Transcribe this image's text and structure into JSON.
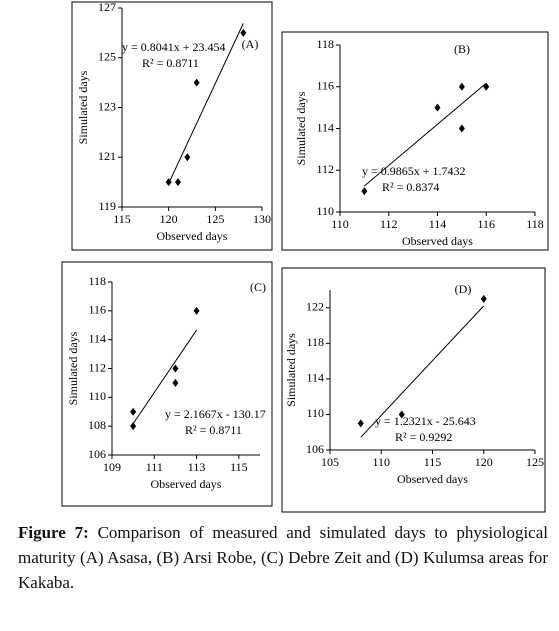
{
  "chart_data": [
    {
      "type": "scatter",
      "label": "(A)",
      "x_label": "Observed days",
      "y_label": "Simulated days",
      "x": [
        120,
        121,
        122,
        123,
        128
      ],
      "values": [
        120,
        120,
        121,
        124,
        126
      ],
      "color": "#000000",
      "trendline": true,
      "annotations": [
        "y = 0.8041x + 23.454",
        "R² = 0.8711"
      ],
      "xlim": [
        115,
        130
      ],
      "xticks": [
        115,
        120,
        125,
        130
      ],
      "ylim": [
        119,
        127
      ],
      "yticks": [
        119,
        121,
        123,
        125,
        127
      ],
      "grid": false
    },
    {
      "type": "scatter",
      "label": "(B)",
      "x_label": "Observed days",
      "y_label": "Simulated days",
      "x": [
        111,
        114,
        115,
        115,
        116
      ],
      "values": [
        111,
        115,
        116,
        114,
        116
      ],
      "color": "#000000",
      "trendline": true,
      "annotations": [
        "y = 0.9865x + 1.7432",
        "R² = 0.8374"
      ],
      "xlim": [
        110,
        118
      ],
      "xticks": [
        110,
        112,
        114,
        116,
        118
      ],
      "ylim": [
        110,
        118
      ],
      "yticks": [
        110,
        112,
        114,
        116,
        118
      ],
      "grid": false
    },
    {
      "type": "scatter",
      "label": "(C)",
      "x_label": "Observed days",
      "y_label": "Simulated days",
      "x": [
        110,
        110,
        112,
        112,
        113
      ],
      "values": [
        109,
        108,
        112,
        111,
        116
      ],
      "color": "#000000",
      "trendline": true,
      "annotations": [
        "y = 2.1667x - 130.17",
        "R² = 0.8711"
      ],
      "xlim": [
        109,
        116
      ],
      "xticks": [
        109,
        111,
        113,
        115
      ],
      "ylim": [
        106,
        118
      ],
      "yticks": [
        106,
        108,
        110,
        112,
        114,
        116,
        118
      ],
      "grid": false
    },
    {
      "type": "scatter",
      "label": "(D)",
      "x_label": "Observed days",
      "y_label": "Simulated days",
      "x": [
        108,
        112,
        120
      ],
      "values": [
        109,
        110,
        123
      ],
      "color": "#000000",
      "trendline": true,
      "annotations": [
        "y = 1.2321x - 25.643",
        "R² = 0.9292"
      ],
      "xlim": [
        105,
        125
      ],
      "xticks": [
        105,
        110,
        115,
        120,
        125
      ],
      "ylim": [
        106,
        124
      ],
      "yticks": [
        106,
        110,
        114,
        118,
        122
      ],
      "grid": false
    }
  ],
  "caption": {
    "label": "Figure 7:",
    "text": "Comparison of measured and simulated days to physiological maturity (A) Asasa, (B) Arsi Robe, (C) Debre Zeit and (D) Kulumsa areas for Kakaba."
  }
}
